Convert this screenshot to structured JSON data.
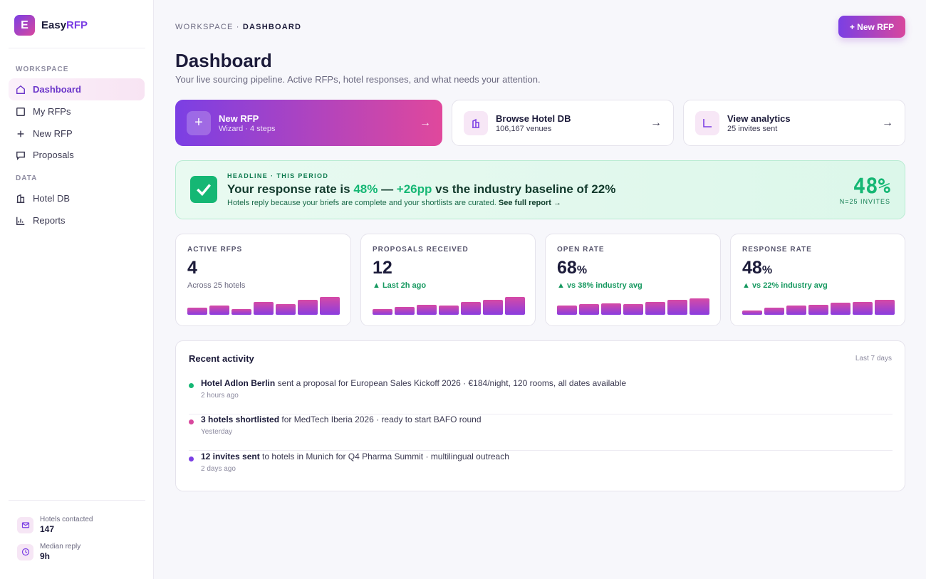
{
  "brand": {
    "logo_letter": "E",
    "name_a": "Easy",
    "name_b": "RFP"
  },
  "sidebar": {
    "sections": [
      {
        "label": "WORKSPACE"
      },
      {
        "label": "DATA"
      }
    ],
    "items": [
      {
        "label": "Dashboard",
        "icon": "home-icon",
        "active": true
      },
      {
        "label": "My RFPs",
        "icon": "square-icon"
      },
      {
        "label": "New RFP",
        "icon": "plus-icon"
      },
      {
        "label": "Proposals",
        "icon": "chat-icon"
      },
      {
        "label": "Hotel DB",
        "icon": "building-icon"
      },
      {
        "label": "Reports",
        "icon": "chart-icon"
      }
    ],
    "stats": [
      {
        "label": "Hotels contacted",
        "value": "147",
        "icon": "mail-icon"
      },
      {
        "label": "Median reply",
        "value": "9h",
        "icon": "clock-icon"
      }
    ]
  },
  "header": {
    "breadcrumb_a": "WORKSPACE ·",
    "breadcrumb_b": "DASHBOARD",
    "new_button": "+ New RFP",
    "title": "Dashboard",
    "subtitle": "Your live sourcing pipeline. Active RFPs, hotel responses, and what needs your attention."
  },
  "quick": [
    {
      "title": "New RFP",
      "sub": "Wizard · 4 steps",
      "icon": "+",
      "arrow": "→"
    },
    {
      "title": "Browse Hotel DB",
      "sub": "106,167 venues",
      "icon": "building-icon",
      "arrow": "→"
    },
    {
      "title": "View analytics",
      "sub": "25 invites sent",
      "icon": "analytics-icon",
      "arrow": "→"
    }
  ],
  "headline": {
    "label": "HEADLINE · THIS PERIOD",
    "t1": "Your response rate is ",
    "t2": "48%",
    "t3": " — ",
    "t4": "+26pp",
    "t5": " vs the industry baseline of 22%",
    "sub": "Hotels reply because your briefs are complete and your shortlists are curated.",
    "link": "See full report →",
    "big": "48%",
    "n": "N=25 INVITES"
  },
  "kpis": [
    {
      "label": "ACTIVE RFPS",
      "value": "4",
      "unit": "",
      "sub": "Across 25 hotels",
      "up": false,
      "bars": [
        0.38,
        0.52,
        0.32,
        0.7,
        0.6,
        0.85,
        1.0
      ]
    },
    {
      "label": "PROPOSALS RECEIVED",
      "value": "12",
      "unit": "",
      "sub": "▲ Last 2h ago",
      "up": true,
      "bars": [
        0.3,
        0.42,
        0.58,
        0.52,
        0.72,
        0.84,
        1.0
      ]
    },
    {
      "label": "OPEN RATE",
      "value": "68",
      "unit": "%",
      "sub": "▲ vs 38% industry avg",
      "up": true,
      "bars": [
        0.5,
        0.6,
        0.65,
        0.6,
        0.72,
        0.82,
        0.92
      ]
    },
    {
      "label": "RESPONSE RATE",
      "value": "48",
      "unit": "%",
      "sub": "▲ vs 22% industry avg",
      "up": true,
      "bars": [
        0.22,
        0.4,
        0.52,
        0.58,
        0.68,
        0.72,
        0.84
      ]
    }
  ],
  "activity": {
    "title": "Recent activity",
    "range": "Last 7 days",
    "items": [
      {
        "bold": "Hotel Adlon Berlin",
        "rest": " sent a proposal for European Sales Kickoff 2026 · €184/night, 120 rooms, all dates available",
        "time": "2 hours ago",
        "color": "#15b774"
      },
      {
        "bold": "3 hotels shortlisted",
        "rest": " for MedTech Iberia 2026 · ready to start BAFO round",
        "time": "Yesterday",
        "color": "#d8479d"
      },
      {
        "bold": "12 invites sent",
        "rest": " to hotels in Munich for Q4 Pharma Summit · multilingual outreach",
        "time": "2 days ago",
        "color": "#7b3fe4"
      }
    ]
  }
}
